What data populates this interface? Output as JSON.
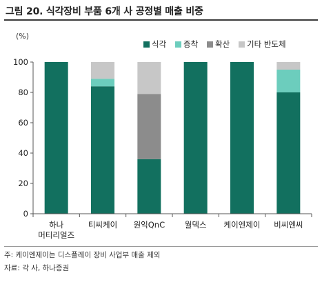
{
  "title": "그림 20. 식각장비 부품 6개 사 공정별 매출 비중",
  "notes": {
    "note": "주: 케이엔제이는 디스플레이 장비 사업부 매출 제외",
    "source": "자료: 각 사, 하나증권"
  },
  "chart_data": {
    "type": "bar",
    "stacked": true,
    "unit_label": "(%)",
    "ylim": [
      0,
      100
    ],
    "yticks": [
      0,
      20,
      40,
      60,
      80,
      100
    ],
    "grid": false,
    "legend_position": "top-right",
    "categories": [
      [
        "하나",
        "머티리얼즈"
      ],
      [
        "티씨케이"
      ],
      [
        "원익QnC"
      ],
      [
        "월덱스"
      ],
      [
        "케이엔제이"
      ],
      [
        "비씨엔씨"
      ]
    ],
    "series": [
      {
        "name": "식각",
        "color": "#12705f",
        "values": [
          100,
          84,
          36,
          100,
          100,
          80
        ]
      },
      {
        "name": "증착",
        "color": "#6ccdbd",
        "values": [
          0,
          5,
          0,
          0,
          0,
          15
        ]
      },
      {
        "name": "확산",
        "color": "#8c8c8c",
        "values": [
          0,
          0,
          43,
          0,
          0,
          0
        ]
      },
      {
        "name": "기타 반도체",
        "color": "#c7c7c7",
        "values": [
          0,
          11,
          21,
          0,
          0,
          5
        ]
      }
    ]
  }
}
